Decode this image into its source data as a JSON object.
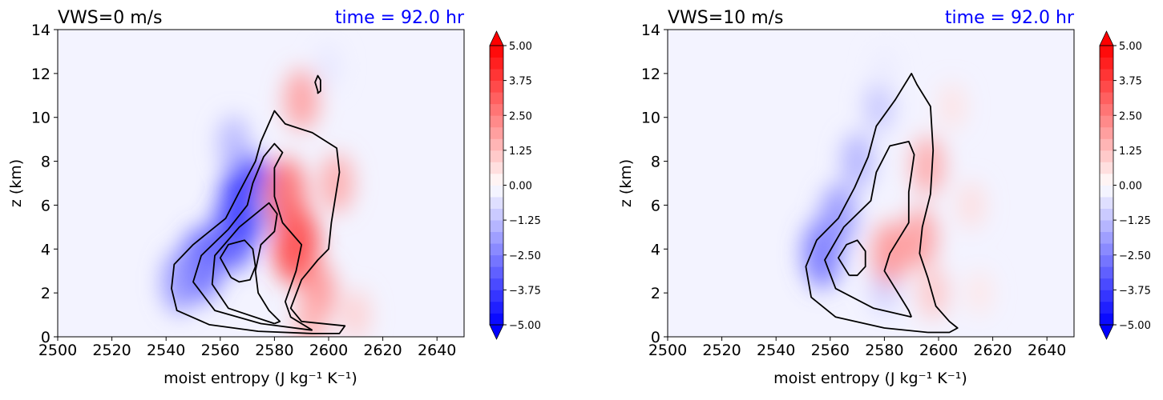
{
  "colors": {
    "negative": "#0000ff",
    "positive": "#ff0000",
    "neutral_background": "#f3f3ff",
    "time_text": "#0000ff",
    "contour": "#000000"
  },
  "chart_data": [
    {
      "type": "heatmap",
      "title": "VWS=0 m/s",
      "time_label": "time = 92.0 hr",
      "xlabel": "moist entropy (J kg⁻¹ K⁻¹)",
      "ylabel": "z (km)",
      "xlim": [
        2500,
        2650
      ],
      "ylim": [
        0,
        14
      ],
      "xticks": [
        "2500",
        "2520",
        "2540",
        "2560",
        "2580",
        "2600",
        "2620",
        "2640"
      ],
      "yticks": [
        "0",
        "2",
        "4",
        "6",
        "8",
        "10",
        "12",
        "14"
      ],
      "colorbar": {
        "range": [
          -5,
          5
        ],
        "ticks": [
          "−5.00",
          "−3.75",
          "−2.50",
          "−1.25",
          "0.00",
          "1.25",
          "2.50",
          "3.75",
          "5.00"
        ],
        "extend": "both",
        "cmap": "bwr"
      },
      "fields": [
        {
          "s": 2570,
          "z": 6.4,
          "value": -4.5
        },
        {
          "s": 2565,
          "z": 4.8,
          "value": -3.5
        },
        {
          "s": 2553,
          "z": 3.3,
          "value": -3.2
        },
        {
          "s": 2545,
          "z": 2.5,
          "value": -2.2
        },
        {
          "s": 2565,
          "z": 8.8,
          "value": -1.5
        },
        {
          "s": 2579,
          "z": 6.0,
          "value": -1.2
        },
        {
          "s": 2600,
          "z": 12.3,
          "value": -0.5
        },
        {
          "s": 2588,
          "z": 4.2,
          "value": 3.8
        },
        {
          "s": 2584,
          "z": 6.5,
          "value": 3.0
        },
        {
          "s": 2590,
          "z": 10.8,
          "value": 2.0
        },
        {
          "s": 2596,
          "z": 2.0,
          "value": 2.2
        },
        {
          "s": 2603,
          "z": 7.0,
          "value": 1.8
        },
        {
          "s": 2610,
          "z": 1.0,
          "value": 1.0
        },
        {
          "s": 2593,
          "z": 0.5,
          "value": 1.5
        }
      ],
      "contours": [
        [
          [
            2594,
            0.15
          ],
          [
            2574,
            0.25
          ],
          [
            2556,
            0.55
          ],
          [
            2544,
            1.2
          ],
          [
            2542,
            2.2
          ],
          [
            2543,
            3.3
          ],
          [
            2550,
            4.2
          ],
          [
            2562,
            5.4
          ],
          [
            2567,
            6.6
          ],
          [
            2573,
            8.0
          ],
          [
            2575,
            8.9
          ],
          [
            2580,
            10.3
          ],
          [
            2584,
            9.7
          ],
          [
            2594,
            9.3
          ],
          [
            2603,
            8.6
          ],
          [
            2604,
            7.5
          ],
          [
            2601,
            5.2
          ],
          [
            2600,
            4.0
          ],
          [
            2596,
            3.5
          ],
          [
            2590,
            2.6
          ],
          [
            2586,
            1.3
          ],
          [
            2590,
            0.7
          ],
          [
            2606,
            0.5
          ],
          [
            2604,
            0.15
          ],
          [
            2594,
            0.15
          ]
        ],
        [
          [
            2594,
            0.3
          ],
          [
            2575,
            0.6
          ],
          [
            2558,
            1.2
          ],
          [
            2550,
            2.5
          ],
          [
            2553,
            3.7
          ],
          [
            2563,
            4.9
          ],
          [
            2570,
            6.0
          ],
          [
            2572,
            7.0
          ],
          [
            2576,
            8.2
          ],
          [
            2580,
            8.8
          ],
          [
            2583,
            8.4
          ],
          [
            2580,
            7.7
          ],
          [
            2580,
            6.4
          ],
          [
            2583,
            5.2
          ],
          [
            2590,
            4.2
          ],
          [
            2588,
            3.0
          ],
          [
            2584,
            1.6
          ],
          [
            2586,
            0.9
          ],
          [
            2594,
            0.3
          ]
        ],
        [
          [
            2580,
            0.6
          ],
          [
            2563,
            1.3
          ],
          [
            2557,
            2.4
          ],
          [
            2558,
            3.7
          ],
          [
            2567,
            5.0
          ],
          [
            2578,
            6.1
          ],
          [
            2581,
            5.6
          ],
          [
            2580,
            4.8
          ],
          [
            2575,
            4.2
          ],
          [
            2573,
            3.0
          ],
          [
            2574,
            2.0
          ],
          [
            2578,
            1.2
          ],
          [
            2582,
            0.7
          ],
          [
            2580,
            0.6
          ]
        ],
        [
          [
            2564,
            2.7
          ],
          [
            2560,
            3.6
          ],
          [
            2563,
            4.2
          ],
          [
            2569,
            4.4
          ],
          [
            2572,
            4.0
          ],
          [
            2573,
            3.2
          ],
          [
            2571,
            2.6
          ],
          [
            2567,
            2.5
          ],
          [
            2564,
            2.7
          ]
        ],
        [
          [
            2596,
            11.2
          ],
          [
            2595,
            11.6
          ],
          [
            2596,
            11.9
          ],
          [
            2597,
            11.7
          ],
          [
            2597,
            11.2
          ],
          [
            2596,
            11.1
          ],
          [
            2596,
            11.2
          ]
        ]
      ]
    },
    {
      "type": "heatmap",
      "title": "VWS=10 m/s",
      "time_label": "time = 92.0 hr",
      "xlabel": "moist entropy (J kg⁻¹ K⁻¹)",
      "ylabel": "z (km)",
      "xlim": [
        2500,
        2650
      ],
      "ylim": [
        0,
        14
      ],
      "xticks": [
        "2500",
        "2520",
        "2540",
        "2560",
        "2580",
        "2600",
        "2620",
        "2640"
      ],
      "yticks": [
        "0",
        "2",
        "4",
        "6",
        "8",
        "10",
        "12",
        "14"
      ],
      "colorbar": {
        "range": [
          -5,
          5
        ],
        "ticks": [
          "−5.00",
          "−3.75",
          "−2.50",
          "−1.25",
          "0.00",
          "1.25",
          "2.50",
          "3.75",
          "5.00"
        ],
        "extend": "both",
        "cmap": "bwr"
      },
      "fields": [
        {
          "s": 2557,
          "z": 3.8,
          "value": -2.8
        },
        {
          "s": 2563,
          "z": 5.5,
          "value": -2.2
        },
        {
          "s": 2570,
          "z": 8.0,
          "value": -1.6
        },
        {
          "s": 2578,
          "z": 10.5,
          "value": -1.2
        },
        {
          "s": 2580,
          "z": 12.2,
          "value": -0.4
        },
        {
          "s": 2580,
          "z": 2.2,
          "value": -1.0
        },
        {
          "s": 2582,
          "z": 3.8,
          "value": 2.2
        },
        {
          "s": 2593,
          "z": 4.5,
          "value": 2.0
        },
        {
          "s": 2596,
          "z": 7.8,
          "value": 1.8
        },
        {
          "s": 2598,
          "z": 2.0,
          "value": 1.2
        },
        {
          "s": 2605,
          "z": 10.5,
          "value": 0.6
        },
        {
          "s": 2612,
          "z": 6.0,
          "value": 0.7
        },
        {
          "s": 2615,
          "z": 2.0,
          "value": 0.5
        }
      ],
      "contours": [
        [
          [
            2596,
            0.2
          ],
          [
            2580,
            0.4
          ],
          [
            2562,
            0.9
          ],
          [
            2553,
            1.8
          ],
          [
            2551,
            3.2
          ],
          [
            2555,
            4.4
          ],
          [
            2563,
            5.4
          ],
          [
            2569,
            6.8
          ],
          [
            2574,
            8.2
          ],
          [
            2577,
            9.6
          ],
          [
            2584,
            10.8
          ],
          [
            2590,
            12.0
          ],
          [
            2592,
            11.5
          ],
          [
            2597,
            10.5
          ],
          [
            2598,
            8.5
          ],
          [
            2597,
            6.5
          ],
          [
            2594,
            5.0
          ],
          [
            2593,
            3.8
          ],
          [
            2596,
            2.7
          ],
          [
            2599,
            1.4
          ],
          [
            2604,
            0.7
          ],
          [
            2607,
            0.4
          ],
          [
            2604,
            0.2
          ],
          [
            2596,
            0.2
          ]
        ],
        [
          [
            2590,
            0.9
          ],
          [
            2576,
            1.3
          ],
          [
            2562,
            2.2
          ],
          [
            2558,
            3.5
          ],
          [
            2565,
            5.0
          ],
          [
            2575,
            6.2
          ],
          [
            2577,
            7.5
          ],
          [
            2582,
            8.7
          ],
          [
            2589,
            8.9
          ],
          [
            2591,
            8.3
          ],
          [
            2589,
            6.6
          ],
          [
            2589,
            5.2
          ],
          [
            2586,
            4.6
          ],
          [
            2582,
            3.8
          ],
          [
            2580,
            3.0
          ],
          [
            2586,
            1.8
          ],
          [
            2589,
            1.2
          ],
          [
            2590,
            0.9
          ]
        ],
        [
          [
            2567,
            2.8
          ],
          [
            2563,
            3.6
          ],
          [
            2566,
            4.2
          ],
          [
            2570,
            4.4
          ],
          [
            2573,
            3.9
          ],
          [
            2573,
            3.2
          ],
          [
            2570,
            2.8
          ],
          [
            2567,
            2.8
          ]
        ]
      ]
    }
  ]
}
